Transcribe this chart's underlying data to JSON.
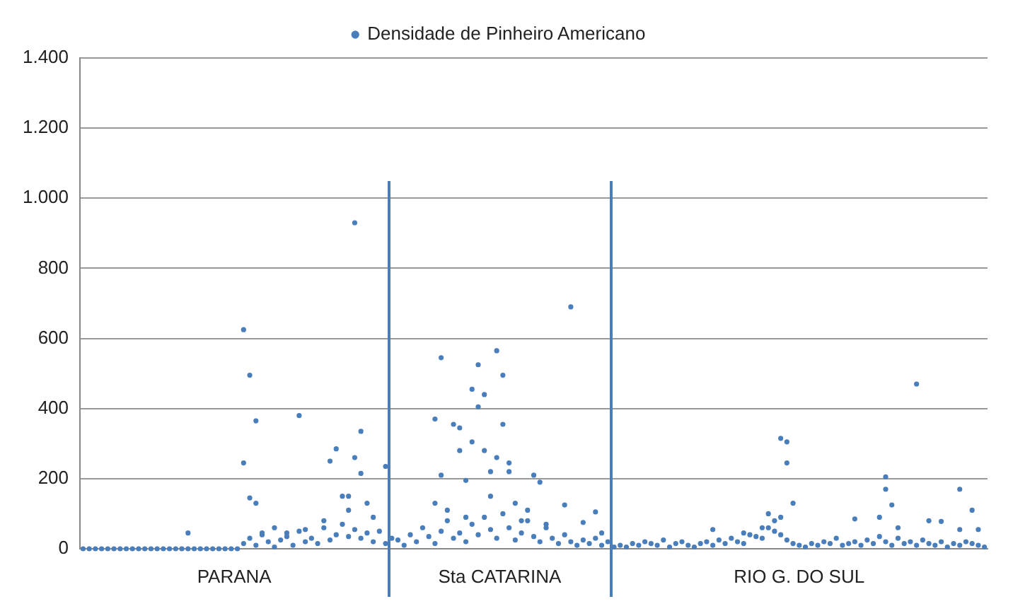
{
  "chart_data": {
    "type": "scatter",
    "ylim": [
      0,
      1400
    ],
    "yticks": [
      0,
      200,
      400,
      600,
      800,
      {
        "value": 1000,
        "label": "1.000"
      },
      {
        "value": 1200,
        "label": "1.200"
      },
      {
        "value": 1400,
        "label": "1.400"
      }
    ],
    "grid": "y",
    "legend": "top",
    "marker": "circle",
    "tick_labels": "y",
    "annotations": [
      "PARANA",
      "Sta CATARINA",
      "RIO G. DO SUL"
    ],
    "categories": [
      null,
      null,
      null,
      null,
      null,
      null,
      null,
      null,
      null,
      null,
      null,
      null,
      null,
      null,
      null,
      null,
      null,
      null,
      null,
      null,
      null,
      null,
      null,
      null,
      null,
      null,
      null,
      null,
      null,
      null,
      null,
      null,
      null,
      null,
      null,
      null,
      null,
      null,
      null,
      null,
      null,
      null,
      null,
      null,
      null,
      null,
      null,
      null,
      null,
      null,
      null,
      null,
      null,
      null,
      null,
      null,
      null,
      null,
      null,
      null,
      null,
      null,
      null,
      null,
      null,
      null,
      null,
      null,
      null,
      null,
      null,
      null,
      null,
      null,
      null,
      null,
      null,
      null,
      null,
      null,
      null,
      null,
      null,
      null,
      null,
      null,
      null,
      null,
      null,
      null,
      null,
      null,
      null,
      null,
      null,
      null,
      null,
      null,
      null,
      null,
      null,
      null,
      null,
      null,
      null,
      null,
      null,
      null,
      null,
      null,
      null,
      null,
      null,
      null,
      null,
      null,
      null,
      null,
      null,
      null,
      null,
      null,
      null,
      null,
      null,
      null,
      null,
      null,
      null,
      null,
      null,
      null,
      null,
      null,
      null,
      null,
      null,
      null,
      null,
      null,
      null,
      null,
      null,
      null,
      null,
      null,
      null
    ],
    "series": [
      {
        "name": "Densidade de Pinheiro Americano",
        "color": "#4a7ebb",
        "values": [
          0,
          0,
          0,
          0,
          0,
          0,
          0,
          0,
          0,
          0,
          0,
          0,
          0,
          0,
          0,
          0,
          0,
          0,
          0,
          0,
          0,
          0,
          0,
          0,
          0,
          0,
          15,
          30,
          10,
          45,
          20,
          5,
          25,
          35,
          10,
          50,
          20,
          30,
          15,
          60,
          25,
          40,
          70,
          35,
          55,
          30,
          45,
          20,
          50,
          15,
          30,
          25,
          10,
          40,
          20,
          60,
          35,
          15,
          50,
          80,
          30,
          45,
          20,
          70,
          40,
          90,
          55,
          30,
          100,
          60,
          25,
          45,
          80,
          35,
          20,
          60,
          30,
          15,
          40,
          20,
          10,
          25,
          15,
          30,
          10,
          20,
          5,
          10,
          5,
          15,
          10,
          20,
          15,
          10,
          25,
          5,
          15,
          20,
          10,
          5,
          15,
          20,
          10,
          25,
          15,
          30,
          20,
          15,
          40,
          35,
          30,
          60,
          50,
          40,
          25,
          15,
          10,
          5,
          15,
          10,
          20,
          15,
          30,
          10,
          15,
          20,
          10,
          25,
          15,
          35,
          20,
          10,
          30,
          15,
          20,
          10,
          25,
          15,
          10,
          20,
          5,
          15,
          10,
          20,
          15,
          10,
          5
        ]
      },
      {
        "color": "#4a7ebb",
        "values": [
          null,
          null,
          null,
          null,
          null,
          null,
          null,
          null,
          null,
          null,
          null,
          null,
          null,
          null,
          null,
          null,
          null,
          45,
          null,
          null,
          null,
          null,
          null,
          null,
          null,
          null,
          625,
          495,
          365,
          40,
          null,
          60,
          null,
          45,
          null,
          380,
          55,
          null,
          null,
          80,
          250,
          285,
          150,
          110,
          930,
          335,
          130,
          90,
          null,
          235,
          null,
          null,
          null,
          null,
          null,
          null,
          null,
          370,
          545,
          110,
          355,
          345,
          195,
          305,
          525,
          440,
          150,
          565,
          495,
          220,
          130,
          null,
          110,
          210,
          190,
          70,
          null,
          null,
          125,
          690,
          null,
          75,
          null,
          105,
          45,
          null,
          null,
          null,
          null,
          null,
          null,
          null,
          null,
          null,
          null,
          null,
          null,
          null,
          null,
          null,
          null,
          null,
          55,
          null,
          null,
          null,
          null,
          45,
          null,
          null,
          60,
          100,
          80,
          315,
          305,
          130,
          null,
          null,
          null,
          null,
          null,
          null,
          null,
          null,
          null,
          85,
          null,
          null,
          null,
          90,
          205,
          125,
          60,
          null,
          null,
          470,
          null,
          80,
          null,
          78,
          null,
          null,
          170,
          null,
          110,
          55,
          null
        ]
      },
      {
        "color": "#4a7ebb",
        "values": [
          null,
          null,
          null,
          null,
          null,
          null,
          null,
          null,
          null,
          null,
          null,
          null,
          null,
          null,
          null,
          null,
          null,
          null,
          null,
          null,
          null,
          null,
          null,
          null,
          null,
          null,
          245,
          145,
          130,
          null,
          null,
          null,
          null,
          null,
          null,
          null,
          null,
          null,
          null,
          null,
          null,
          null,
          null,
          150,
          260,
          215,
          null,
          null,
          null,
          null,
          null,
          null,
          null,
          null,
          null,
          null,
          null,
          130,
          210,
          null,
          null,
          280,
          90,
          455,
          405,
          280,
          220,
          260,
          355,
          245,
          null,
          80,
          null,
          null,
          null,
          null,
          null,
          null,
          null,
          null,
          null,
          null,
          null,
          null,
          null,
          null,
          null,
          null,
          null,
          null,
          null,
          null,
          null,
          null,
          null,
          null,
          null,
          null,
          null,
          null,
          null,
          null,
          null,
          null,
          null,
          null,
          null,
          null,
          null,
          null,
          null,
          null,
          null,
          90,
          245,
          null,
          null,
          null,
          null,
          null,
          null,
          null,
          null,
          null,
          null,
          null,
          null,
          null,
          null,
          null,
          170,
          null,
          null,
          null,
          null,
          null,
          null,
          null,
          null,
          null,
          null,
          null,
          55,
          null,
          null,
          null,
          null
        ]
      }
    ]
  }
}
